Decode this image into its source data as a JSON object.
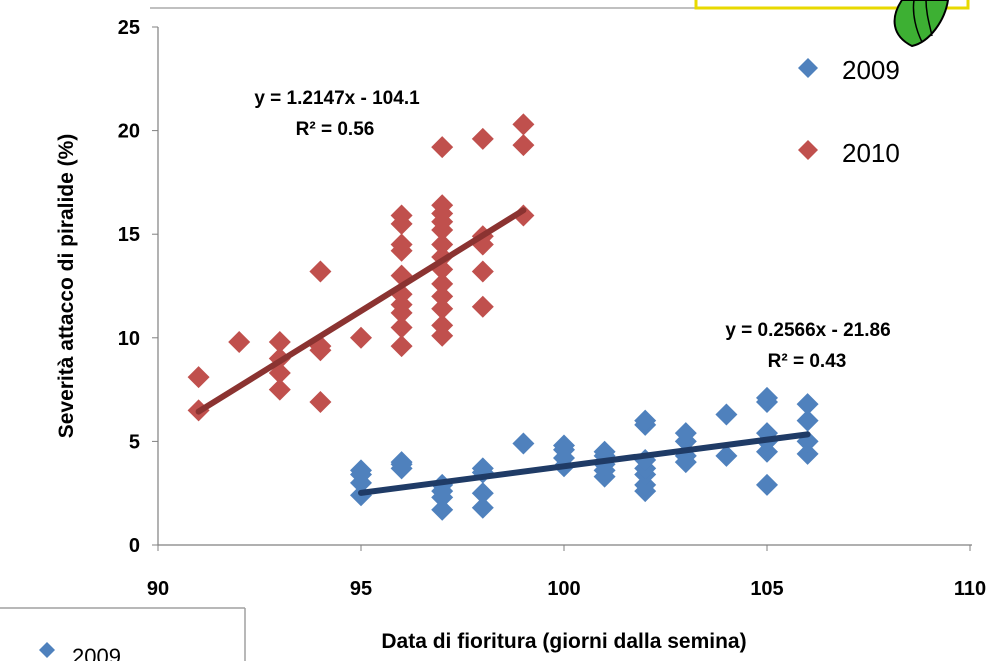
{
  "chart_data": {
    "type": "scatter",
    "title": "",
    "xlabel": "Data di fioritura (giorni dalla semina)",
    "ylabel": "Severità attacco di piralide (%)",
    "xlim": [
      90,
      110
    ],
    "ylim": [
      0,
      25
    ],
    "x_ticks": [
      "90",
      "95",
      "100",
      "105",
      "110"
    ],
    "y_ticks": [
      "0",
      "5",
      "10",
      "15",
      "20",
      "25"
    ],
    "grid": false,
    "legend_position": "right",
    "series": [
      {
        "name": "2009",
        "color": "#4F81BD",
        "marker": "diamond",
        "points": [
          [
            95,
            2.4
          ],
          [
            95,
            3.0
          ],
          [
            95,
            3.4
          ],
          [
            95,
            3.6
          ],
          [
            96,
            3.7
          ],
          [
            96,
            3.9
          ],
          [
            96,
            4.0
          ],
          [
            97,
            1.7
          ],
          [
            97,
            2.3
          ],
          [
            97,
            2.6
          ],
          [
            97,
            2.9
          ],
          [
            98,
            1.8
          ],
          [
            98,
            2.5
          ],
          [
            98,
            3.5
          ],
          [
            98,
            3.7
          ],
          [
            99,
            4.9
          ],
          [
            100,
            3.8
          ],
          [
            100,
            4.2
          ],
          [
            100,
            4.6
          ],
          [
            100,
            4.8
          ],
          [
            101,
            3.3
          ],
          [
            101,
            3.6
          ],
          [
            101,
            3.9
          ],
          [
            101,
            4.3
          ],
          [
            101,
            4.5
          ],
          [
            102,
            2.6
          ],
          [
            102,
            2.9
          ],
          [
            102,
            3.4
          ],
          [
            102,
            3.7
          ],
          [
            102,
            4.1
          ],
          [
            102,
            5.8
          ],
          [
            102,
            6.0
          ],
          [
            103,
            4.0
          ],
          [
            103,
            4.3
          ],
          [
            103,
            5.0
          ],
          [
            103,
            5.4
          ],
          [
            104,
            4.3
          ],
          [
            104,
            6.3
          ],
          [
            105,
            2.9
          ],
          [
            105,
            4.5
          ],
          [
            105,
            5.0
          ],
          [
            105,
            5.4
          ],
          [
            105,
            6.9
          ],
          [
            105,
            7.1
          ],
          [
            106,
            4.4
          ],
          [
            106,
            5.0
          ],
          [
            106,
            6.0
          ],
          [
            106,
            6.8
          ]
        ],
        "trendline": {
          "slope": 0.2566,
          "intercept": -21.86,
          "x_range": [
            95,
            106
          ],
          "color": "#1F3B66",
          "equation": "y = 0.2566x - 21.86",
          "r2": "R² = 0.43"
        }
      },
      {
        "name": "2010",
        "color": "#C0504D",
        "marker": "diamond",
        "points": [
          [
            91,
            6.5
          ],
          [
            91,
            8.1
          ],
          [
            92,
            9.8
          ],
          [
            93,
            7.5
          ],
          [
            93,
            8.3
          ],
          [
            93,
            9.0
          ],
          [
            93,
            9.8
          ],
          [
            94,
            6.9
          ],
          [
            94,
            9.4
          ],
          [
            94,
            9.6
          ],
          [
            94,
            13.2
          ],
          [
            95,
            10.0
          ],
          [
            96,
            9.6
          ],
          [
            96,
            10.5
          ],
          [
            96,
            11.2
          ],
          [
            96,
            11.6
          ],
          [
            96,
            12.1
          ],
          [
            96,
            13.0
          ],
          [
            96,
            14.2
          ],
          [
            96,
            14.5
          ],
          [
            96,
            15.5
          ],
          [
            96,
            15.9
          ],
          [
            97,
            10.1
          ],
          [
            97,
            10.6
          ],
          [
            97,
            11.4
          ],
          [
            97,
            12.0
          ],
          [
            97,
            12.6
          ],
          [
            97,
            13.3
          ],
          [
            97,
            13.9
          ],
          [
            97,
            14.5
          ],
          [
            97,
            15.2
          ],
          [
            97,
            15.6
          ],
          [
            97,
            16.0
          ],
          [
            97,
            16.4
          ],
          [
            97,
            19.2
          ],
          [
            98,
            11.5
          ],
          [
            98,
            13.2
          ],
          [
            98,
            14.5
          ],
          [
            98,
            14.9
          ],
          [
            98,
            19.6
          ],
          [
            99,
            15.9
          ],
          [
            99,
            19.3
          ],
          [
            99,
            20.3
          ]
        ],
        "trendline": {
          "slope": 1.2147,
          "intercept": -104.1,
          "x_range": [
            91,
            99
          ],
          "color": "#8B3331",
          "equation": "y = 1.2147x - 104.1",
          "r2": "R² = 0.56"
        }
      }
    ]
  }
}
